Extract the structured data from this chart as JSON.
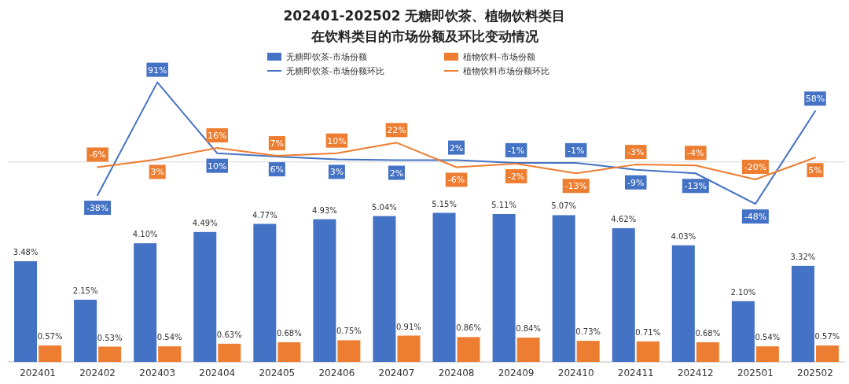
{
  "chart_data": [
    {
      "type": "bar",
      "categories": [
        "202401",
        "202402",
        "202403",
        "202404",
        "202405",
        "202406",
        "202407",
        "202408",
        "202409",
        "202410",
        "202411",
        "202412",
        "202501",
        "202502"
      ],
      "series": [
        {
          "name": "无糖即饮茶-市场份额",
          "color": "#4472c4",
          "values": [
            3.48,
            2.15,
            4.1,
            4.49,
            4.77,
            4.93,
            5.04,
            5.15,
            5.11,
            5.07,
            4.62,
            4.03,
            2.1,
            3.32
          ],
          "value_labels": [
            "3.48%",
            "2.15%",
            "4.10%",
            "4.49%",
            "4.77%",
            "4.93%",
            "5.04%",
            "5.15%",
            "5.11%",
            "5.07%",
            "4.62%",
            "4.03%",
            "2.10%",
            "3.32%"
          ]
        },
        {
          "name": "植物饮料-市场份额",
          "color": "#ed7d31",
          "values": [
            0.57,
            0.53,
            0.54,
            0.63,
            0.68,
            0.75,
            0.91,
            0.86,
            0.84,
            0.73,
            0.71,
            0.68,
            0.54,
            0.57
          ],
          "value_labels": [
            "0.57%",
            "0.53%",
            "0.54%",
            "0.63%",
            "0.68%",
            "0.75%",
            "0.91%",
            "0.86%",
            "0.84%",
            "0.73%",
            "0.71%",
            "0.68%",
            "0.54%",
            "0.57%"
          ]
        }
      ],
      "legend": "top"
    },
    {
      "type": "line",
      "title": "202401-202502 无糖即饮茶、植物饮料类目",
      "subtitle": "在饮料类目的市场份额及环比变动情况",
      "categories": [
        null,
        null,
        null,
        null,
        null,
        null,
        null,
        null,
        null,
        null,
        null,
        null,
        null,
        null
      ],
      "series": [
        {
          "name": "无糖即饮茶-市场份额环比",
          "color": "#4472c4",
          "values": [
            null,
            -38,
            91,
            10,
            6,
            3,
            2,
            2,
            -1,
            -1,
            -9,
            -13,
            -48,
            58
          ],
          "value_labels": [
            null,
            "-38%",
            "91%",
            "10%",
            "6%",
            "3%",
            "2%",
            "2%",
            "-1%",
            "-1%",
            "-9%",
            "-13%",
            "-48%",
            "58%"
          ]
        },
        {
          "name": "植物饮料市场份额环比",
          "color": "#ed7d31",
          "values": [
            null,
            -6,
            3,
            16,
            7,
            10,
            22,
            -6,
            -2,
            -13,
            -3,
            -4,
            -20,
            5
          ],
          "value_labels": [
            null,
            "-6%",
            "3%",
            "16%",
            "7%",
            "10%",
            "22%",
            "-6%",
            "-2%",
            "-13%",
            "-3%",
            "-4%",
            "-20%",
            "5%"
          ]
        }
      ],
      "ref_lines": [
        {
          "axis": "y",
          "value": 0,
          "color": "#d9d9d9"
        }
      ],
      "legend": "top",
      "marker": "none",
      "line_style": "solid"
    }
  ]
}
